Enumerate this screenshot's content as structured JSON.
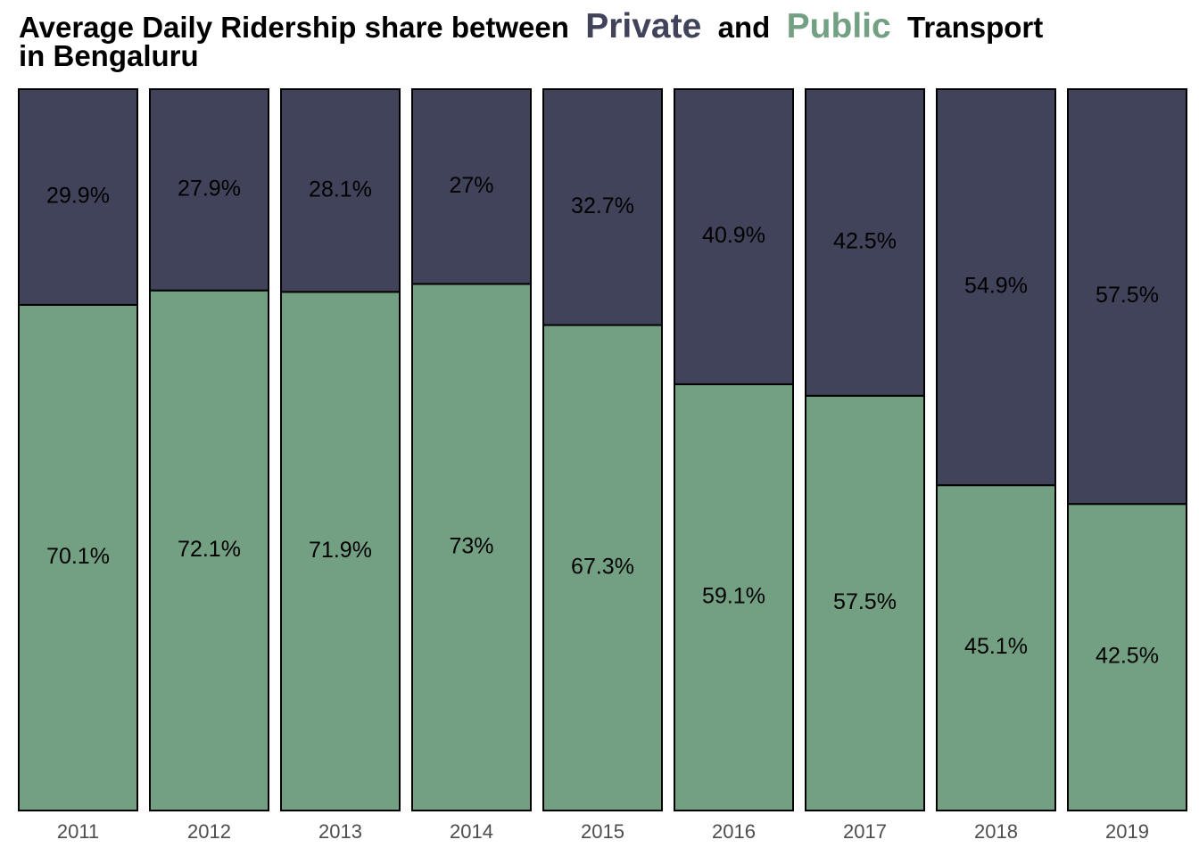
{
  "title": {
    "prefix": "Average Daily Ridership share between",
    "private_word": "Private",
    "and_word": "and",
    "public_word": "Public",
    "suffix": "Transport",
    "line2": "in Bengaluru"
  },
  "colors": {
    "private": "#41435a",
    "public": "#73a082",
    "bar_outline": "#000000",
    "label_text": "#000000",
    "tick_text": "#4d4d4d"
  },
  "chart_data": {
    "type": "bar",
    "stacked": true,
    "title": "Average Daily Ridership share between Private and Public Transport in Bengaluru",
    "xlabel": "",
    "ylabel": "",
    "ylim": [
      0,
      100
    ],
    "grid": false,
    "categories": [
      "2011",
      "2012",
      "2013",
      "2014",
      "2015",
      "2016",
      "2017",
      "2018",
      "2019"
    ],
    "series": [
      {
        "name": "Public",
        "values": [
          70.1,
          72.1,
          71.9,
          73,
          67.3,
          59.1,
          57.5,
          45.1,
          42.5
        ],
        "labels": [
          "70.1%",
          "72.1%",
          "71.9%",
          "73%",
          "67.3%",
          "59.1%",
          "57.5%",
          "45.1%",
          "42.5%"
        ]
      },
      {
        "name": "Private",
        "values": [
          29.9,
          27.9,
          28.1,
          27,
          32.7,
          40.9,
          42.5,
          54.9,
          57.5
        ],
        "labels": [
          "29.9%",
          "27.9%",
          "28.1%",
          "27%",
          "32.7%",
          "40.9%",
          "42.5%",
          "54.9%",
          "57.5%"
        ]
      }
    ]
  }
}
